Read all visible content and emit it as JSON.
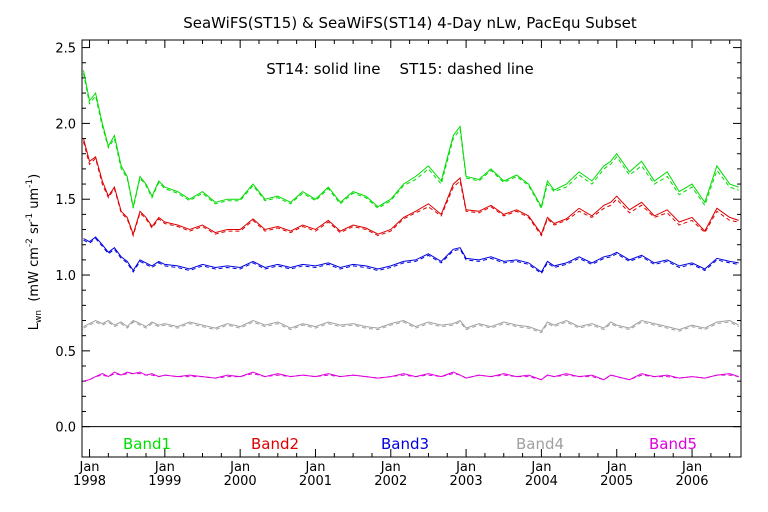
{
  "chart_data": {
    "type": "line",
    "title": "SeaWiFS(ST15) & SeaWiFS(ST14) 4-Day nLw, PacEqu Subset",
    "annotation": "ST14: solid line    ST15: dashed line",
    "ylabel_parts": {
      "base": "L",
      "base_sub": "wn",
      "unit_open": "(mW cm",
      "sup1": "-2",
      "mid1": " sr",
      "sup2": "-1",
      "mid2": " um",
      "sup3": "-1",
      "close": ")"
    },
    "xlabel": "",
    "ylim": [
      -0.2,
      2.55
    ],
    "yticks": [
      0.0,
      0.5,
      1.0,
      1.5,
      2.0,
      2.5
    ],
    "ytick_labels": [
      "0.0",
      "0.5",
      "1.0",
      "1.5",
      "2.0",
      "2.5"
    ],
    "xlim": [
      1997.9,
      2006.65
    ],
    "xticks": [
      {
        "x": 1998,
        "month": "Jan",
        "year": "1998"
      },
      {
        "x": 1999,
        "month": "Jan",
        "year": "1999"
      },
      {
        "x": 2000,
        "month": "Jan",
        "year": "2000"
      },
      {
        "x": 2001,
        "month": "Jan",
        "year": "2001"
      },
      {
        "x": 2002,
        "month": "Jan",
        "year": "2002"
      },
      {
        "x": 2003,
        "month": "Jan",
        "year": "2003"
      },
      {
        "x": 2004,
        "month": "Jan",
        "year": "2004"
      },
      {
        "x": 2005,
        "month": "Jan",
        "year": "2005"
      },
      {
        "x": 2006,
        "month": "Jan",
        "year": "2006"
      }
    ],
    "zero_line": true,
    "series": [
      {
        "name": "Band1",
        "color": "#00dd00",
        "x": [
          1997.92,
          1998.0,
          1998.08,
          1998.17,
          1998.25,
          1998.33,
          1998.42,
          1998.5,
          1998.58,
          1998.67,
          1998.75,
          1998.83,
          1998.92,
          1999.0,
          1999.17,
          1999.33,
          1999.5,
          1999.67,
          1999.83,
          2000.0,
          2000.17,
          2000.33,
          2000.5,
          2000.67,
          2000.83,
          2001.0,
          2001.17,
          2001.33,
          2001.5,
          2001.67,
          2001.83,
          2002.0,
          2002.17,
          2002.33,
          2002.5,
          2002.67,
          2002.83,
          2002.92,
          2003.0,
          2003.17,
          2003.33,
          2003.5,
          2003.67,
          2003.83,
          2004.0,
          2004.08,
          2004.17,
          2004.33,
          2004.5,
          2004.67,
          2004.83,
          2004.92,
          2005.0,
          2005.17,
          2005.33,
          2005.5,
          2005.67,
          2005.83,
          2006.0,
          2006.17,
          2006.33,
          2006.5,
          2006.62
        ],
        "st14": [
          2.35,
          2.15,
          2.2,
          2.0,
          1.85,
          1.92,
          1.72,
          1.65,
          1.45,
          1.65,
          1.6,
          1.52,
          1.62,
          1.58,
          1.55,
          1.5,
          1.55,
          1.48,
          1.5,
          1.5,
          1.6,
          1.5,
          1.52,
          1.48,
          1.55,
          1.5,
          1.58,
          1.48,
          1.55,
          1.52,
          1.45,
          1.5,
          1.6,
          1.65,
          1.72,
          1.62,
          1.92,
          1.98,
          1.65,
          1.63,
          1.7,
          1.62,
          1.66,
          1.6,
          1.45,
          1.62,
          1.56,
          1.6,
          1.68,
          1.62,
          1.72,
          1.75,
          1.8,
          1.68,
          1.75,
          1.62,
          1.68,
          1.55,
          1.6,
          1.48,
          1.72,
          1.6,
          1.58
        ],
        "st15": [
          2.33,
          2.13,
          2.18,
          1.98,
          1.84,
          1.9,
          1.7,
          1.64,
          1.44,
          1.64,
          1.59,
          1.51,
          1.61,
          1.57,
          1.54,
          1.49,
          1.54,
          1.47,
          1.49,
          1.49,
          1.59,
          1.49,
          1.51,
          1.47,
          1.54,
          1.49,
          1.57,
          1.47,
          1.54,
          1.51,
          1.44,
          1.49,
          1.59,
          1.63,
          1.7,
          1.6,
          1.9,
          1.96,
          1.64,
          1.62,
          1.69,
          1.61,
          1.65,
          1.59,
          1.44,
          1.6,
          1.55,
          1.58,
          1.66,
          1.6,
          1.7,
          1.73,
          1.78,
          1.66,
          1.72,
          1.6,
          1.65,
          1.53,
          1.58,
          1.46,
          1.69,
          1.58,
          1.56
        ]
      },
      {
        "name": "Band2",
        "color": "#dd0000",
        "x": [
          1997.92,
          1998.0,
          1998.08,
          1998.17,
          1998.25,
          1998.33,
          1998.42,
          1998.5,
          1998.58,
          1998.67,
          1998.75,
          1998.83,
          1998.92,
          1999.0,
          1999.17,
          1999.33,
          1999.5,
          1999.67,
          1999.83,
          2000.0,
          2000.17,
          2000.33,
          2000.5,
          2000.67,
          2000.83,
          2001.0,
          2001.17,
          2001.33,
          2001.5,
          2001.67,
          2001.83,
          2002.0,
          2002.17,
          2002.33,
          2002.5,
          2002.67,
          2002.83,
          2002.92,
          2003.0,
          2003.17,
          2003.33,
          2003.5,
          2003.67,
          2003.83,
          2004.0,
          2004.08,
          2004.17,
          2004.33,
          2004.5,
          2004.67,
          2004.83,
          2004.92,
          2005.0,
          2005.17,
          2005.33,
          2005.5,
          2005.67,
          2005.83,
          2006.0,
          2006.17,
          2006.33,
          2006.5,
          2006.62
        ],
        "st14": [
          1.9,
          1.75,
          1.78,
          1.62,
          1.52,
          1.58,
          1.42,
          1.38,
          1.27,
          1.42,
          1.38,
          1.32,
          1.38,
          1.35,
          1.33,
          1.3,
          1.33,
          1.28,
          1.3,
          1.3,
          1.37,
          1.3,
          1.32,
          1.29,
          1.33,
          1.3,
          1.36,
          1.29,
          1.33,
          1.31,
          1.27,
          1.3,
          1.38,
          1.42,
          1.47,
          1.4,
          1.6,
          1.64,
          1.43,
          1.42,
          1.46,
          1.4,
          1.43,
          1.39,
          1.27,
          1.38,
          1.34,
          1.37,
          1.44,
          1.39,
          1.46,
          1.48,
          1.52,
          1.43,
          1.48,
          1.39,
          1.43,
          1.35,
          1.38,
          1.29,
          1.44,
          1.38,
          1.36
        ],
        "st15": [
          1.88,
          1.73,
          1.77,
          1.6,
          1.51,
          1.57,
          1.41,
          1.37,
          1.26,
          1.41,
          1.37,
          1.31,
          1.37,
          1.34,
          1.32,
          1.29,
          1.32,
          1.27,
          1.29,
          1.29,
          1.36,
          1.29,
          1.31,
          1.28,
          1.32,
          1.29,
          1.35,
          1.28,
          1.32,
          1.3,
          1.26,
          1.29,
          1.37,
          1.41,
          1.45,
          1.39,
          1.58,
          1.62,
          1.42,
          1.41,
          1.45,
          1.39,
          1.42,
          1.38,
          1.26,
          1.37,
          1.33,
          1.36,
          1.42,
          1.38,
          1.44,
          1.46,
          1.5,
          1.41,
          1.46,
          1.38,
          1.41,
          1.33,
          1.36,
          1.28,
          1.42,
          1.36,
          1.35
        ]
      },
      {
        "name": "Band3",
        "color": "#0000dd",
        "x": [
          1997.92,
          1998.0,
          1998.08,
          1998.17,
          1998.25,
          1998.33,
          1998.42,
          1998.5,
          1998.58,
          1998.67,
          1998.75,
          1998.83,
          1998.92,
          1999.0,
          1999.17,
          1999.33,
          1999.5,
          1999.67,
          1999.83,
          2000.0,
          2000.17,
          2000.33,
          2000.5,
          2000.67,
          2000.83,
          2001.0,
          2001.17,
          2001.33,
          2001.5,
          2001.67,
          2001.83,
          2002.0,
          2002.17,
          2002.33,
          2002.5,
          2002.67,
          2002.83,
          2002.92,
          2003.0,
          2003.17,
          2003.33,
          2003.5,
          2003.67,
          2003.83,
          2004.0,
          2004.08,
          2004.17,
          2004.33,
          2004.5,
          2004.67,
          2004.83,
          2004.92,
          2005.0,
          2005.17,
          2005.33,
          2005.5,
          2005.67,
          2005.83,
          2006.0,
          2006.17,
          2006.33,
          2006.5,
          2006.62
        ],
        "st14": [
          1.24,
          1.22,
          1.25,
          1.2,
          1.15,
          1.18,
          1.12,
          1.09,
          1.03,
          1.1,
          1.08,
          1.06,
          1.09,
          1.07,
          1.06,
          1.04,
          1.07,
          1.05,
          1.06,
          1.05,
          1.09,
          1.05,
          1.07,
          1.05,
          1.07,
          1.06,
          1.08,
          1.05,
          1.07,
          1.06,
          1.04,
          1.06,
          1.09,
          1.1,
          1.14,
          1.09,
          1.17,
          1.18,
          1.11,
          1.1,
          1.12,
          1.09,
          1.1,
          1.08,
          1.02,
          1.09,
          1.06,
          1.08,
          1.12,
          1.08,
          1.12,
          1.13,
          1.15,
          1.1,
          1.13,
          1.08,
          1.1,
          1.06,
          1.08,
          1.04,
          1.11,
          1.09,
          1.08
        ],
        "st15": [
          1.23,
          1.21,
          1.24,
          1.19,
          1.14,
          1.17,
          1.11,
          1.08,
          1.02,
          1.09,
          1.07,
          1.05,
          1.08,
          1.06,
          1.05,
          1.03,
          1.06,
          1.04,
          1.05,
          1.04,
          1.08,
          1.04,
          1.06,
          1.04,
          1.06,
          1.05,
          1.07,
          1.04,
          1.06,
          1.05,
          1.03,
          1.05,
          1.08,
          1.09,
          1.13,
          1.08,
          1.16,
          1.17,
          1.1,
          1.09,
          1.11,
          1.08,
          1.09,
          1.07,
          1.01,
          1.08,
          1.05,
          1.07,
          1.11,
          1.07,
          1.11,
          1.12,
          1.14,
          1.09,
          1.12,
          1.07,
          1.09,
          1.05,
          1.07,
          1.03,
          1.1,
          1.08,
          1.07
        ]
      },
      {
        "name": "Band4",
        "color": "#a0a0a0",
        "x": [
          1997.92,
          1998.0,
          1998.08,
          1998.17,
          1998.25,
          1998.33,
          1998.42,
          1998.5,
          1998.58,
          1998.67,
          1998.75,
          1998.83,
          1998.92,
          1999.0,
          1999.17,
          1999.33,
          1999.5,
          1999.67,
          1999.83,
          2000.0,
          2000.17,
          2000.33,
          2000.5,
          2000.67,
          2000.83,
          2001.0,
          2001.17,
          2001.33,
          2001.5,
          2001.67,
          2001.83,
          2002.0,
          2002.17,
          2002.33,
          2002.5,
          2002.67,
          2002.83,
          2002.92,
          2003.0,
          2003.17,
          2003.33,
          2003.5,
          2003.67,
          2003.83,
          2004.0,
          2004.08,
          2004.17,
          2004.33,
          2004.5,
          2004.67,
          2004.83,
          2004.92,
          2005.0,
          2005.17,
          2005.33,
          2005.5,
          2005.67,
          2005.83,
          2006.0,
          2006.17,
          2006.33,
          2006.5,
          2006.62
        ],
        "st14": [
          0.66,
          0.68,
          0.7,
          0.68,
          0.7,
          0.67,
          0.69,
          0.66,
          0.7,
          0.68,
          0.66,
          0.69,
          0.67,
          0.68,
          0.66,
          0.69,
          0.67,
          0.65,
          0.68,
          0.66,
          0.7,
          0.67,
          0.69,
          0.65,
          0.68,
          0.66,
          0.69,
          0.67,
          0.68,
          0.66,
          0.65,
          0.68,
          0.7,
          0.66,
          0.69,
          0.67,
          0.68,
          0.7,
          0.65,
          0.68,
          0.66,
          0.69,
          0.67,
          0.66,
          0.63,
          0.69,
          0.67,
          0.7,
          0.66,
          0.68,
          0.65,
          0.69,
          0.67,
          0.65,
          0.7,
          0.68,
          0.66,
          0.64,
          0.67,
          0.65,
          0.69,
          0.7,
          0.67
        ],
        "st15": [
          0.65,
          0.67,
          0.69,
          0.67,
          0.69,
          0.66,
          0.68,
          0.65,
          0.69,
          0.67,
          0.65,
          0.68,
          0.66,
          0.67,
          0.65,
          0.68,
          0.66,
          0.64,
          0.67,
          0.65,
          0.69,
          0.66,
          0.68,
          0.64,
          0.67,
          0.65,
          0.68,
          0.66,
          0.67,
          0.65,
          0.64,
          0.67,
          0.69,
          0.65,
          0.68,
          0.66,
          0.67,
          0.69,
          0.64,
          0.67,
          0.65,
          0.68,
          0.66,
          0.65,
          0.62,
          0.68,
          0.66,
          0.69,
          0.65,
          0.67,
          0.64,
          0.68,
          0.66,
          0.64,
          0.69,
          0.67,
          0.65,
          0.63,
          0.66,
          0.64,
          0.68,
          0.69,
          0.66
        ]
      },
      {
        "name": "Band5",
        "color": "#dd00dd",
        "x": [
          1997.92,
          1998.0,
          1998.08,
          1998.17,
          1998.25,
          1998.33,
          1998.42,
          1998.5,
          1998.58,
          1998.67,
          1998.75,
          1998.83,
          1998.92,
          1999.0,
          1999.17,
          1999.33,
          1999.5,
          1999.67,
          1999.83,
          2000.0,
          2000.17,
          2000.33,
          2000.5,
          2000.67,
          2000.83,
          2001.0,
          2001.17,
          2001.33,
          2001.5,
          2001.67,
          2001.83,
          2002.0,
          2002.17,
          2002.33,
          2002.5,
          2002.67,
          2002.83,
          2002.92,
          2003.0,
          2003.17,
          2003.33,
          2003.5,
          2003.67,
          2003.83,
          2004.0,
          2004.08,
          2004.17,
          2004.33,
          2004.5,
          2004.67,
          2004.83,
          2004.92,
          2005.0,
          2005.17,
          2005.33,
          2005.5,
          2005.67,
          2005.83,
          2006.0,
          2006.17,
          2006.33,
          2006.5,
          2006.62
        ],
        "st14": [
          0.3,
          0.31,
          0.33,
          0.35,
          0.33,
          0.36,
          0.34,
          0.36,
          0.35,
          0.36,
          0.34,
          0.35,
          0.33,
          0.34,
          0.33,
          0.34,
          0.33,
          0.32,
          0.34,
          0.33,
          0.36,
          0.33,
          0.35,
          0.33,
          0.34,
          0.33,
          0.35,
          0.33,
          0.34,
          0.33,
          0.32,
          0.33,
          0.35,
          0.33,
          0.35,
          0.33,
          0.36,
          0.34,
          0.32,
          0.34,
          0.33,
          0.35,
          0.33,
          0.34,
          0.31,
          0.34,
          0.33,
          0.35,
          0.33,
          0.34,
          0.31,
          0.34,
          0.33,
          0.31,
          0.35,
          0.33,
          0.34,
          0.32,
          0.33,
          0.32,
          0.34,
          0.35,
          0.33
        ],
        "st15": [
          0.3,
          0.31,
          0.33,
          0.34,
          0.33,
          0.35,
          0.34,
          0.35,
          0.35,
          0.35,
          0.34,
          0.34,
          0.33,
          0.34,
          0.33,
          0.33,
          0.33,
          0.32,
          0.33,
          0.33,
          0.35,
          0.33,
          0.34,
          0.33,
          0.34,
          0.33,
          0.34,
          0.33,
          0.34,
          0.33,
          0.32,
          0.33,
          0.34,
          0.33,
          0.34,
          0.33,
          0.35,
          0.34,
          0.32,
          0.34,
          0.33,
          0.34,
          0.33,
          0.33,
          0.31,
          0.34,
          0.33,
          0.34,
          0.33,
          0.33,
          0.31,
          0.34,
          0.33,
          0.31,
          0.34,
          0.33,
          0.33,
          0.32,
          0.33,
          0.32,
          0.34,
          0.34,
          0.33
        ]
      }
    ]
  }
}
